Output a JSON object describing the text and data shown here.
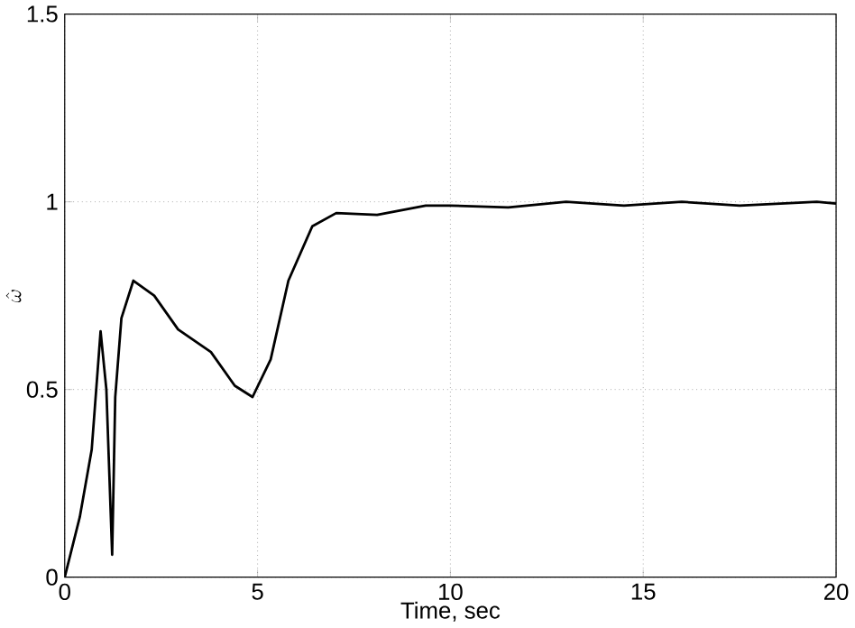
{
  "chart_data": {
    "type": "line",
    "xlabel": "Time, sec",
    "ylabel": "\\hat{\\omega}",
    "x": [
      0,
      0.39,
      0.7,
      0.93,
      1.08,
      1.23,
      1.31,
      1.47,
      1.78,
      2.32,
      2.94,
      3.79,
      4.41,
      4.87,
      5.34,
      5.8,
      6.42,
      7.04,
      8.1,
      9.36,
      10,
      11.5,
      13,
      14.5,
      16,
      17.5,
      19.5,
      20
    ],
    "series": [
      {
        "color": "#000000",
        "values": [
          0,
          0.16,
          0.34,
          0.655,
          0.5,
          0.06,
          0.48,
          0.69,
          0.79,
          0.75,
          0.66,
          0.6,
          0.51,
          0.48,
          0.58,
          0.79,
          0.935,
          0.97,
          0.965,
          0.99,
          0.99,
          0.985,
          1.0,
          0.99,
          1.0,
          0.99,
          1.0,
          0.995
        ]
      }
    ],
    "xlim": [
      0,
      20
    ],
    "ylim": [
      0,
      1.5
    ],
    "xticks": [
      0,
      5,
      10,
      15,
      20
    ],
    "yticks": [
      0,
      0.5,
      1,
      1.5
    ],
    "grid": true,
    "line_style": "solid",
    "marker": "none"
  }
}
